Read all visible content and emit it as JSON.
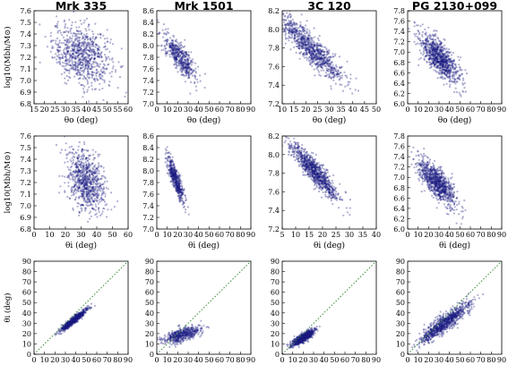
{
  "chart_data": [
    {
      "type": "scatter",
      "title": "Mrk 335",
      "xlabel": "θo (deg)",
      "ylabel": "log10(Mbh/M⊙)",
      "xlim": [
        15,
        60
      ],
      "ylim": [
        6.8,
        7.6
      ],
      "xticks": [
        15,
        20,
        25,
        30,
        35,
        40,
        45,
        50,
        55,
        60
      ],
      "yticks": [
        6.8,
        6.9,
        7.0,
        7.1,
        7.2,
        7.3,
        7.4,
        7.5,
        7.6
      ],
      "points": {
        "cx": 38,
        "sx": 7,
        "cy": 7.22,
        "sy": 0.13,
        "rho": -0.25,
        "n": 800
      }
    },
    {
      "type": "scatter",
      "title": "Mrk 1501",
      "xlabel": "θo (deg)",
      "ylabel": "",
      "xlim": [
        0,
        90
      ],
      "ylim": [
        7.0,
        8.6
      ],
      "xticks": [
        0,
        10,
        20,
        30,
        40,
        50,
        60,
        70,
        80,
        90
      ],
      "yticks": [
        7.0,
        7.2,
        7.4,
        7.6,
        7.8,
        8.0,
        8.2,
        8.4,
        8.6
      ],
      "points": {
        "cx": 22,
        "sx": 8,
        "cy": 7.8,
        "sy": 0.2,
        "rho": -0.8,
        "n": 500
      }
    },
    {
      "type": "scatter",
      "title": "3C 120",
      "xlabel": "θo (deg)",
      "ylabel": "",
      "xlim": [
        10,
        50
      ],
      "ylim": [
        7.2,
        8.2
      ],
      "xticks": [
        10,
        15,
        20,
        25,
        30,
        35,
        40,
        45,
        50
      ],
      "yticks": [
        7.2,
        7.4,
        7.6,
        7.8,
        8.0,
        8.2
      ],
      "points": {
        "cx": 22,
        "sx": 7,
        "cy": 7.8,
        "sy": 0.18,
        "rho": -0.9,
        "n": 900
      }
    },
    {
      "type": "scatter",
      "title": "PG 2130+099",
      "xlabel": "θo (deg)",
      "ylabel": "",
      "xlim": [
        0,
        90
      ],
      "ylim": [
        6.0,
        7.8
      ],
      "xticks": [
        0,
        10,
        20,
        30,
        40,
        50,
        60,
        70,
        80,
        90
      ],
      "yticks": [
        6.0,
        6.2,
        6.4,
        6.6,
        6.8,
        7.0,
        7.2,
        7.4,
        7.6,
        7.8
      ],
      "points": {
        "cx": 30,
        "sx": 10,
        "cy": 6.9,
        "sy": 0.25,
        "rho": -0.75,
        "n": 900
      }
    },
    {
      "type": "scatter",
      "title": "",
      "xlabel": "θi (deg)",
      "ylabel": "log10(Mbh/M⊙)",
      "xlim": [
        0,
        60
      ],
      "ylim": [
        6.8,
        7.6
      ],
      "xticks": [
        0,
        10,
        20,
        30,
        40,
        50,
        60
      ],
      "yticks": [
        6.8,
        6.9,
        7.0,
        7.1,
        7.2,
        7.3,
        7.4,
        7.5,
        7.6
      ],
      "points": {
        "cx": 33,
        "sx": 6,
        "cy": 7.22,
        "sy": 0.13,
        "rho": -0.3,
        "n": 800
      }
    },
    {
      "type": "scatter",
      "title": "",
      "xlabel": "θi (deg)",
      "ylabel": "",
      "xlim": [
        0,
        90
      ],
      "ylim": [
        7.0,
        8.6
      ],
      "xticks": [
        0,
        10,
        20,
        30,
        40,
        50,
        60,
        70,
        80,
        90
      ],
      "yticks": [
        7.0,
        7.2,
        7.4,
        7.6,
        7.8,
        8.0,
        8.2,
        8.4,
        8.6
      ],
      "points": {
        "cx": 18,
        "sx": 4,
        "cy": 7.85,
        "sy": 0.2,
        "rho": -0.85,
        "n": 500
      }
    },
    {
      "type": "scatter",
      "title": "",
      "xlabel": "θi (deg)",
      "ylabel": "",
      "xlim": [
        5,
        40
      ],
      "ylim": [
        7.2,
        8.2
      ],
      "xticks": [
        5,
        10,
        15,
        20,
        25,
        30,
        35,
        40
      ],
      "yticks": [
        7.2,
        7.4,
        7.6,
        7.8,
        8.0,
        8.2
      ],
      "points": {
        "cx": 17,
        "sx": 4.5,
        "cy": 7.82,
        "sy": 0.15,
        "rho": -0.9,
        "n": 900
      }
    },
    {
      "type": "scatter",
      "title": "",
      "xlabel": "θi (deg)",
      "ylabel": "",
      "xlim": [
        0,
        90
      ],
      "ylim": [
        6.0,
        7.8
      ],
      "xticks": [
        0,
        10,
        20,
        30,
        40,
        50,
        60,
        70,
        80,
        90
      ],
      "yticks": [
        6.0,
        6.2,
        6.4,
        6.6,
        6.8,
        7.0,
        7.2,
        7.4,
        7.6,
        7.8
      ],
      "points": {
        "cx": 28,
        "sx": 9,
        "cy": 6.9,
        "sy": 0.22,
        "rho": -0.75,
        "n": 900
      }
    },
    {
      "type": "scatter",
      "title": "",
      "xlabel": "θo (deg)",
      "ylabel": "θi (deg)",
      "xlim": [
        0,
        90
      ],
      "ylim": [
        0,
        90
      ],
      "xticks": [
        0,
        10,
        20,
        30,
        40,
        50,
        60,
        70,
        80,
        90
      ],
      "yticks": [
        0,
        10,
        20,
        30,
        40,
        50,
        60,
        70,
        80,
        90
      ],
      "diagonal": true,
      "points": {
        "cx": 38,
        "sx": 6,
        "cy": 33,
        "sy": 5,
        "rho": 0.95,
        "n": 800
      }
    },
    {
      "type": "scatter",
      "title": "",
      "xlabel": "θo (deg)",
      "ylabel": "",
      "xlim": [
        0,
        90
      ],
      "ylim": [
        0,
        90
      ],
      "xticks": [
        0,
        10,
        20,
        30,
        40,
        50,
        60,
        70,
        80,
        90
      ],
      "yticks": [
        0,
        10,
        20,
        30,
        40,
        50,
        60,
        70,
        80,
        90
      ],
      "diagonal": true,
      "points": {
        "cx": 25,
        "sx": 9,
        "cy": 19,
        "sy": 4,
        "rho": 0.6,
        "n": 500
      }
    },
    {
      "type": "scatter",
      "title": "",
      "xlabel": "θo (deg)",
      "ylabel": "",
      "xlim": [
        0,
        90
      ],
      "ylim": [
        0,
        90
      ],
      "xticks": [
        0,
        10,
        20,
        30,
        40,
        50,
        60,
        70,
        80,
        90
      ],
      "yticks": [
        0,
        10,
        20,
        30,
        40,
        50,
        60,
        70,
        80,
        90
      ],
      "diagonal": true,
      "points": {
        "cx": 20,
        "sx": 5,
        "cy": 16,
        "sy": 3.5,
        "rho": 0.8,
        "n": 900
      }
    },
    {
      "type": "scatter",
      "title": "",
      "xlabel": "θo (deg)",
      "ylabel": "",
      "xlim": [
        0,
        90
      ],
      "ylim": [
        0,
        90
      ],
      "xticks": [
        0,
        10,
        20,
        30,
        40,
        50,
        60,
        70,
        80,
        90
      ],
      "yticks": [
        0,
        10,
        20,
        30,
        40,
        50,
        60,
        70,
        80,
        90
      ],
      "diagonal": true,
      "points": {
        "cx": 35,
        "sx": 12,
        "cy": 30,
        "sy": 10,
        "rho": 0.9,
        "n": 900
      }
    }
  ],
  "colors": {
    "points": "#1a1a80",
    "diagonal": "#3a8a3a",
    "axis": "#000000"
  }
}
